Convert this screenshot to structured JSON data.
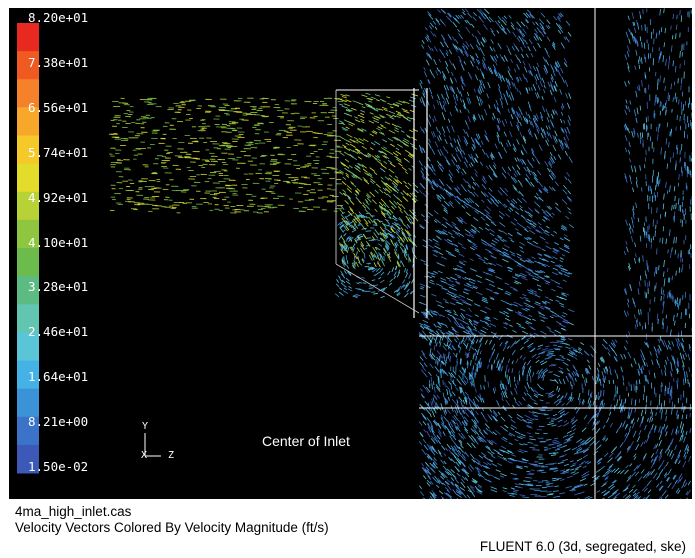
{
  "legend": {
    "labels": [
      "8.20e+01",
      "7.38e+01",
      "6.56e+01",
      "5.74e+01",
      "4.92e+01",
      "4.10e+01",
      "3.28e+01",
      "2.46e+01",
      "1.64e+01",
      "8.21e+00",
      "1.50e-02"
    ],
    "colors": [
      "#e8291f",
      "#ee5a22",
      "#f5822a",
      "#f7a82b",
      "#f6c92b",
      "#e3dc2a",
      "#b7d236",
      "#8ec63f",
      "#6bbb4d",
      "#5bbb82",
      "#61c5b2",
      "#5bc5d8",
      "#45b2e6",
      "#3c92d7",
      "#3a73c8",
      "#3c59b8"
    ]
  },
  "axis_triad": {
    "y_label": "Y",
    "x_label": "X",
    "z_label": "Z"
  },
  "annotation": {
    "center_label": "Center of Inlet"
  },
  "caption": {
    "case_file": "4ma_high_inlet.cas",
    "description": "Velocity Vectors Colored By Velocity Magnitude (ft/s)",
    "solver": "FLUENT 6.0 (3d, segregated, ske)"
  }
}
